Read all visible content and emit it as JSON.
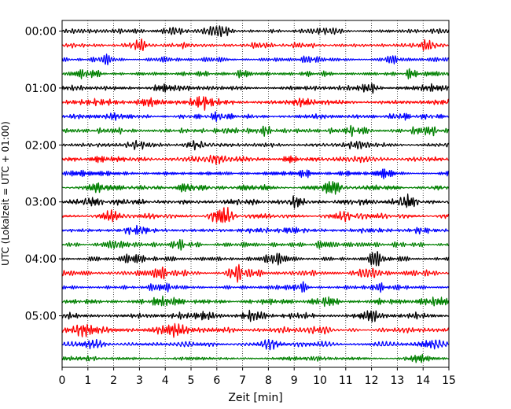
{
  "chart_data": {
    "type": "line",
    "title": "",
    "xlabel": "Zeit  [min]",
    "ylabel": "UTC (Lokalzeit = UTC + 01:00)",
    "xlim": [
      0,
      15
    ],
    "x_ticks": [
      0,
      1,
      2,
      3,
      4,
      5,
      6,
      7,
      8,
      9,
      10,
      11,
      12,
      13,
      14,
      15
    ],
    "x_tick_labels": [
      "0",
      "1",
      "2",
      "3",
      "4",
      "5",
      "6",
      "7",
      "8",
      "9",
      "10",
      "11",
      "12",
      "13",
      "14",
      "15"
    ],
    "y_tick_labels": [
      "00:00",
      "01:00",
      "02:00",
      "03:00",
      "04:00",
      "05:00"
    ],
    "y_tick_traces": [
      0,
      4,
      8,
      12,
      16,
      20
    ],
    "grid": "vertical dotted",
    "trace_colors": [
      "#000000",
      "#ff0000",
      "#0000ff",
      "#008000"
    ],
    "traces": [
      {
        "start": "00:00",
        "color": "#000000",
        "bursts": [
          [
            2.5,
            1.0
          ],
          [
            6.2,
            1.6
          ],
          [
            4.3,
            0.8
          ],
          [
            10.4,
            0.7
          ]
        ]
      },
      {
        "start": "00:15",
        "color": "#ff0000",
        "bursts": [
          [
            3.0,
            1.1
          ],
          [
            7.7,
            0.6
          ],
          [
            14.3,
            0.9
          ]
        ]
      },
      {
        "start": "00:30",
        "color": "#0000ff",
        "bursts": [
          [
            1.6,
            0.7
          ],
          [
            9.6,
            0.8
          ],
          [
            12.8,
            0.6
          ]
        ]
      },
      {
        "start": "00:45",
        "color": "#008000",
        "bursts": [
          [
            1.0,
            0.9
          ],
          [
            7.0,
            0.7
          ],
          [
            13.5,
            0.8
          ]
        ]
      },
      {
        "start": "01:00",
        "color": "#000000",
        "bursts": [
          [
            3.9,
            1.2
          ],
          [
            11.9,
            1.2
          ],
          [
            14.4,
            0.8
          ]
        ]
      },
      {
        "start": "01:15",
        "color": "#ff0000",
        "bursts": [
          [
            5.4,
            1.1
          ],
          [
            9.3,
            1.0
          ],
          [
            3.3,
            0.7
          ]
        ]
      },
      {
        "start": "01:30",
        "color": "#0000ff",
        "bursts": [
          [
            6.2,
            0.9
          ],
          [
            13.1,
            0.9
          ],
          [
            2.1,
            0.7
          ]
        ]
      },
      {
        "start": "01:45",
        "color": "#008000",
        "bursts": [
          [
            7.8,
            0.9
          ],
          [
            14.1,
            0.9
          ],
          [
            11.5,
            0.7
          ]
        ]
      },
      {
        "start": "02:00",
        "color": "#000000",
        "bursts": [
          [
            2.8,
            1.0
          ],
          [
            5.2,
            1.0
          ],
          [
            11.5,
            0.9
          ]
        ]
      },
      {
        "start": "02:15",
        "color": "#ff0000",
        "bursts": [
          [
            1.6,
            0.9
          ],
          [
            8.8,
            0.9
          ],
          [
            6.0,
            0.6
          ]
        ]
      },
      {
        "start": "02:30",
        "color": "#0000ff",
        "bursts": [
          [
            0.5,
            1.0
          ],
          [
            9.4,
            1.0
          ],
          [
            12.5,
            0.8
          ]
        ]
      },
      {
        "start": "02:45",
        "color": "#008000",
        "bursts": [
          [
            4.9,
            0.8
          ],
          [
            10.5,
            1.0
          ],
          [
            1.4,
            0.7
          ]
        ]
      },
      {
        "start": "03:00",
        "color": "#000000",
        "bursts": [
          [
            1.1,
            0.9
          ],
          [
            9.0,
            0.9
          ],
          [
            13.3,
            1.3
          ]
        ]
      },
      {
        "start": "03:15",
        "color": "#ff0000",
        "bursts": [
          [
            6.2,
            1.5
          ],
          [
            2.0,
            0.8
          ],
          [
            11.2,
            0.8
          ]
        ]
      },
      {
        "start": "03:30",
        "color": "#0000ff",
        "bursts": [
          [
            2.9,
            0.8
          ],
          [
            8.9,
            0.9
          ],
          [
            13.9,
            0.7
          ]
        ]
      },
      {
        "start": "03:45",
        "color": "#008000",
        "bursts": [
          [
            4.8,
            0.9
          ],
          [
            10.2,
            0.9
          ],
          [
            1.9,
            0.6
          ]
        ]
      },
      {
        "start": "04:00",
        "color": "#000000",
        "bursts": [
          [
            2.8,
            1.0
          ],
          [
            8.3,
            1.0
          ],
          [
            12.2,
            0.9
          ]
        ]
      },
      {
        "start": "04:15",
        "color": "#ff0000",
        "bursts": [
          [
            6.7,
            1.0
          ],
          [
            3.7,
            0.8
          ],
          [
            11.9,
            0.7
          ]
        ]
      },
      {
        "start": "04:30",
        "color": "#0000ff",
        "bursts": [
          [
            3.8,
            0.8
          ],
          [
            9.2,
            0.9
          ],
          [
            12.2,
            0.8
          ]
        ]
      },
      {
        "start": "04:45",
        "color": "#008000",
        "bursts": [
          [
            4.1,
            0.9
          ],
          [
            10.3,
            0.8
          ],
          [
            14.4,
            0.9
          ]
        ]
      },
      {
        "start": "05:00",
        "color": "#000000",
        "bursts": [
          [
            5.6,
            1.0
          ],
          [
            7.4,
            0.9
          ],
          [
            11.9,
            1.1
          ]
        ]
      },
      {
        "start": "05:15",
        "color": "#ff0000",
        "bursts": [
          [
            0.9,
            1.1
          ],
          [
            9.9,
            0.9
          ],
          [
            4.4,
            0.7
          ]
        ]
      },
      {
        "start": "05:30",
        "color": "#0000ff",
        "bursts": [
          [
            1.2,
            0.9
          ],
          [
            8.1,
            0.8
          ],
          [
            14.2,
            0.9
          ]
        ]
      },
      {
        "start": "05:45",
        "color": "#008000",
        "bursts": [
          [
            1.1,
            0.9
          ],
          [
            10.0,
            1.0
          ],
          [
            13.8,
            0.9
          ]
        ]
      }
    ]
  }
}
